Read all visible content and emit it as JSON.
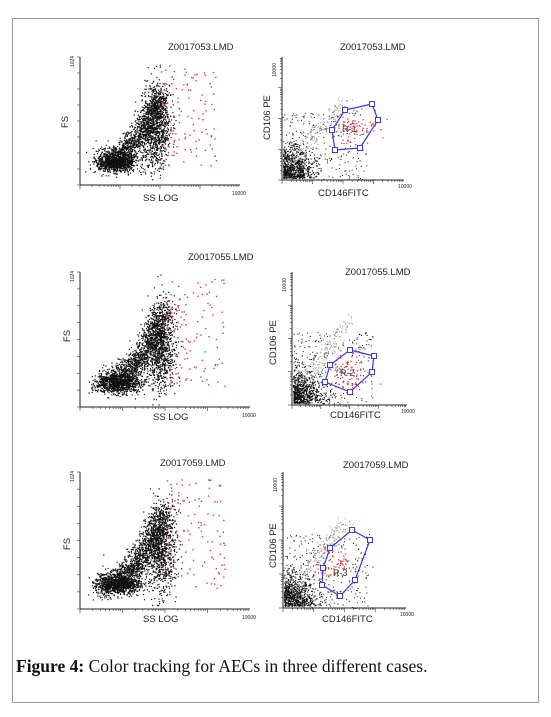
{
  "figure": {
    "caption_label": "Figure 4:",
    "caption_text": " Color tracking for AECs in three different cases."
  },
  "rows": [
    {
      "left": {
        "title": "Z0017053.LMD",
        "xlabel": "SS LOG",
        "ylabel": "FS",
        "ymax_tick": "1024",
        "xmax_tick": "10000"
      },
      "right": {
        "title": "Z0017053.LMD",
        "xlabel": "CD146FITC",
        "ylabel": "CD106 PE",
        "ymax_tick": "10000",
        "xmax_tick": "10000",
        "gate": "R-1"
      }
    },
    {
      "left": {
        "title": "Z0017055.LMD",
        "xlabel": "SS LOG",
        "ylabel": "FS",
        "ymax_tick": "1024",
        "xmax_tick": "10000"
      },
      "right": {
        "title": "Z0017055.LMD",
        "xlabel": "CD146FITC",
        "ylabel": "CD106 PE",
        "ymax_tick": "10000",
        "xmax_tick": "10000",
        "gate": "R-2"
      }
    },
    {
      "left": {
        "title": "Z0017059.LMD",
        "xlabel": "SS LOG",
        "ylabel": "FS",
        "ymax_tick": "1024",
        "xmax_tick": "10000"
      },
      "right": {
        "title": "Z0017059.LMD",
        "xlabel": "CD146FITC",
        "ylabel": "CD106 PE",
        "ymax_tick": "10000",
        "xmax_tick": "10000",
        "gate": "R-3"
      }
    }
  ],
  "colors": {
    "black_events": "#111111",
    "tracked_events": "#e0393e",
    "gate": "#3a3ae0",
    "grey_events": "#9a9a9a"
  }
}
